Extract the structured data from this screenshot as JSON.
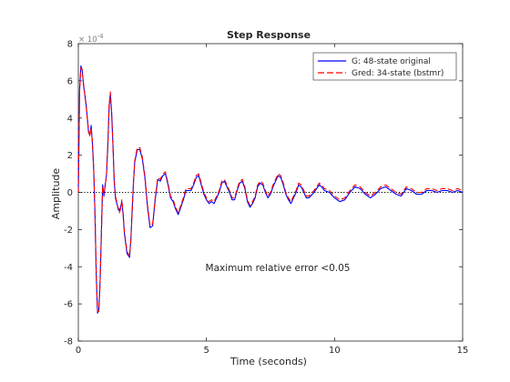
{
  "chart_data": {
    "type": "line",
    "title": "Step Response",
    "xlabel": "Time (seconds)",
    "ylabel": "Amplitude",
    "y_exponent_label": "× 10^-4",
    "xlim": [
      0,
      15
    ],
    "ylim": [
      -8,
      8
    ],
    "y_scale_factor": 0.0001,
    "x_ticks": [
      "0",
      "5",
      "10",
      "15"
    ],
    "y_ticks": [
      "-8",
      "-6",
      "-4",
      "-2",
      "0",
      "2",
      "4",
      "6",
      "8"
    ],
    "grid": false,
    "legend_location": "top-right",
    "annotation": "Maximum relative error <0.05",
    "steady_state": 0,
    "series": [
      {
        "name": "G: 48-state original",
        "color": "#0000ff",
        "style": "solid",
        "x": [
          0,
          0.05,
          0.1,
          0.15,
          0.2,
          0.3,
          0.4,
          0.45,
          0.5,
          0.55,
          0.6,
          0.65,
          0.7,
          0.75,
          0.8,
          0.85,
          0.9,
          0.95,
          1.0,
          1.05,
          1.1,
          1.15,
          1.2,
          1.25,
          1.3,
          1.35,
          1.4,
          1.45,
          1.5,
          1.55,
          1.6,
          1.65,
          1.7,
          1.75,
          1.8,
          1.9,
          2.0,
          2.05,
          2.1,
          2.15,
          2.2,
          2.3,
          2.4,
          2.5,
          2.6,
          2.7,
          2.8,
          2.9,
          3.0,
          3.1,
          3.2,
          3.3,
          3.4,
          3.5,
          3.6,
          3.7,
          3.8,
          3.9,
          4.0,
          4.1,
          4.2,
          4.3,
          4.4,
          4.5,
          4.6,
          4.7,
          4.8,
          4.9,
          5.0,
          5.1,
          5.2,
          5.3,
          5.4,
          5.5,
          5.6,
          5.7,
          5.8,
          5.9,
          6.0,
          6.1,
          6.2,
          6.3,
          6.4,
          6.5,
          6.6,
          6.7,
          6.8,
          6.9,
          7.0,
          7.1,
          7.2,
          7.3,
          7.4,
          7.5,
          7.6,
          7.7,
          7.8,
          7.9,
          8.0,
          8.1,
          8.2,
          8.3,
          8.4,
          8.5,
          8.6,
          8.7,
          8.8,
          8.9,
          9.0,
          9.2,
          9.4,
          9.5,
          9.6,
          9.8,
          10.0,
          10.2,
          10.4,
          10.6,
          10.8,
          11.0,
          11.2,
          11.4,
          11.6,
          11.8,
          12.0,
          12.2,
          12.4,
          12.6,
          12.8,
          13.0,
          13.2,
          13.4,
          13.6,
          13.8,
          14.0,
          14.2,
          14.4,
          14.6,
          14.8,
          15.0
        ],
        "y": [
          0,
          5.5,
          6.8,
          6.6,
          5.8,
          4.8,
          3.2,
          3.1,
          3.6,
          2.6,
          1.2,
          -1.2,
          -4.5,
          -6.5,
          -6.3,
          -4.8,
          -2.2,
          0.4,
          -0.2,
          0.4,
          0.9,
          2.5,
          4.6,
          5.3,
          4.3,
          2.6,
          0.6,
          -0.3,
          -0.6,
          -0.8,
          -1.0,
          -0.8,
          -0.5,
          -1.2,
          -2.2,
          -3.3,
          -3.5,
          -2.5,
          -1.0,
          0.5,
          1.6,
          2.3,
          2.3,
          1.8,
          0.8,
          -0.8,
          -1.9,
          -1.8,
          -0.4,
          0.7,
          0.6,
          0.9,
          1.0,
          0.4,
          -0.3,
          -0.5,
          -0.9,
          -1.2,
          -0.8,
          -0.4,
          0.1,
          0.1,
          0.1,
          0.4,
          0.8,
          0.9,
          0.4,
          -0.1,
          -0.4,
          -0.6,
          -0.5,
          -0.6,
          -0.3,
          0.0,
          0.5,
          0.6,
          0.3,
          0.0,
          -0.4,
          -0.4,
          0.1,
          0.5,
          0.6,
          0.2,
          -0.5,
          -0.8,
          -0.6,
          -0.3,
          0.3,
          0.5,
          0.4,
          0.0,
          -0.3,
          -0.1,
          0.3,
          0.6,
          0.9,
          0.8,
          0.4,
          -0.1,
          -0.4,
          -0.6,
          -0.3,
          0.0,
          0.4,
          0.3,
          0.0,
          -0.3,
          -0.3,
          0.0,
          0.4,
          0.3,
          0.1,
          0.0,
          -0.3,
          -0.5,
          -0.4,
          0.0,
          0.3,
          0.2,
          -0.1,
          -0.3,
          -0.1,
          0.2,
          0.3,
          0.1,
          -0.1,
          -0.2,
          0.2,
          0.1,
          -0.1,
          -0.1,
          0.1,
          0.1,
          0.0,
          0.1,
          0.1,
          0.0,
          0.1,
          0.0
        ]
      },
      {
        "name": "Gred: 34-state (bstmr)",
        "color": "#ff0000",
        "style": "dashed",
        "x": [
          0,
          0.05,
          0.1,
          0.15,
          0.2,
          0.3,
          0.4,
          0.45,
          0.5,
          0.55,
          0.6,
          0.65,
          0.7,
          0.75,
          0.8,
          0.85,
          0.9,
          0.95,
          1.0,
          1.05,
          1.1,
          1.15,
          1.2,
          1.25,
          1.3,
          1.35,
          1.4,
          1.45,
          1.5,
          1.55,
          1.6,
          1.65,
          1.7,
          1.75,
          1.8,
          1.9,
          2.0,
          2.05,
          2.1,
          2.15,
          2.2,
          2.3,
          2.4,
          2.5,
          2.6,
          2.7,
          2.8,
          2.9,
          3.0,
          3.1,
          3.2,
          3.3,
          3.4,
          3.5,
          3.6,
          3.7,
          3.8,
          3.9,
          4.0,
          4.1,
          4.2,
          4.3,
          4.4,
          4.5,
          4.6,
          4.7,
          4.8,
          4.9,
          5.0,
          5.1,
          5.2,
          5.3,
          5.4,
          5.5,
          5.6,
          5.7,
          5.8,
          5.9,
          6.0,
          6.1,
          6.2,
          6.3,
          6.4,
          6.5,
          6.6,
          6.7,
          6.8,
          6.9,
          7.0,
          7.1,
          7.2,
          7.3,
          7.4,
          7.5,
          7.6,
          7.7,
          7.8,
          7.9,
          8.0,
          8.1,
          8.2,
          8.3,
          8.4,
          8.5,
          8.6,
          8.7,
          8.8,
          8.9,
          9.0,
          9.2,
          9.4,
          9.5,
          9.6,
          9.8,
          10.0,
          10.2,
          10.4,
          10.6,
          10.8,
          11.0,
          11.2,
          11.4,
          11.6,
          11.8,
          12.0,
          12.2,
          12.4,
          12.6,
          12.8,
          13.0,
          13.2,
          13.4,
          13.6,
          13.8,
          14.0,
          14.2,
          14.4,
          14.6,
          14.8,
          15.0
        ],
        "y": [
          0,
          5.4,
          6.7,
          6.6,
          5.9,
          4.7,
          3.3,
          3.0,
          3.5,
          2.7,
          1.3,
          -1.1,
          -4.4,
          -6.4,
          -6.4,
          -4.9,
          -2.3,
          0.3,
          -0.1,
          0.3,
          1.0,
          2.6,
          4.7,
          5.4,
          4.2,
          2.5,
          0.7,
          -0.2,
          -0.5,
          -0.9,
          -1.1,
          -0.9,
          -0.4,
          -1.1,
          -2.1,
          -3.2,
          -3.4,
          -2.6,
          -1.1,
          0.4,
          1.7,
          2.4,
          2.4,
          1.9,
          0.9,
          -0.7,
          -1.8,
          -1.7,
          -0.3,
          0.8,
          0.7,
          1.0,
          1.1,
          0.5,
          -0.2,
          -0.4,
          -0.8,
          -1.1,
          -0.7,
          -0.3,
          0.2,
          0.2,
          0.2,
          0.5,
          0.9,
          1.0,
          0.5,
          0.0,
          -0.3,
          -0.5,
          -0.4,
          -0.5,
          -0.2,
          0.1,
          0.6,
          0.7,
          0.4,
          0.1,
          -0.3,
          -0.3,
          0.2,
          0.6,
          0.7,
          0.3,
          -0.4,
          -0.7,
          -0.5,
          -0.2,
          0.4,
          0.6,
          0.5,
          0.1,
          -0.2,
          0.0,
          0.4,
          0.7,
          1.0,
          0.9,
          0.5,
          0.0,
          -0.3,
          -0.5,
          -0.2,
          0.1,
          0.5,
          0.4,
          0.1,
          -0.2,
          -0.2,
          0.1,
          0.5,
          0.4,
          0.2,
          0.1,
          -0.2,
          -0.4,
          -0.3,
          0.1,
          0.4,
          0.3,
          0.0,
          -0.2,
          0.0,
          0.3,
          0.4,
          0.2,
          0.0,
          -0.1,
          0.3,
          0.2,
          0.0,
          0.0,
          0.2,
          0.2,
          0.1,
          0.2,
          0.2,
          0.1,
          0.2,
          0.1
        ]
      }
    ]
  }
}
